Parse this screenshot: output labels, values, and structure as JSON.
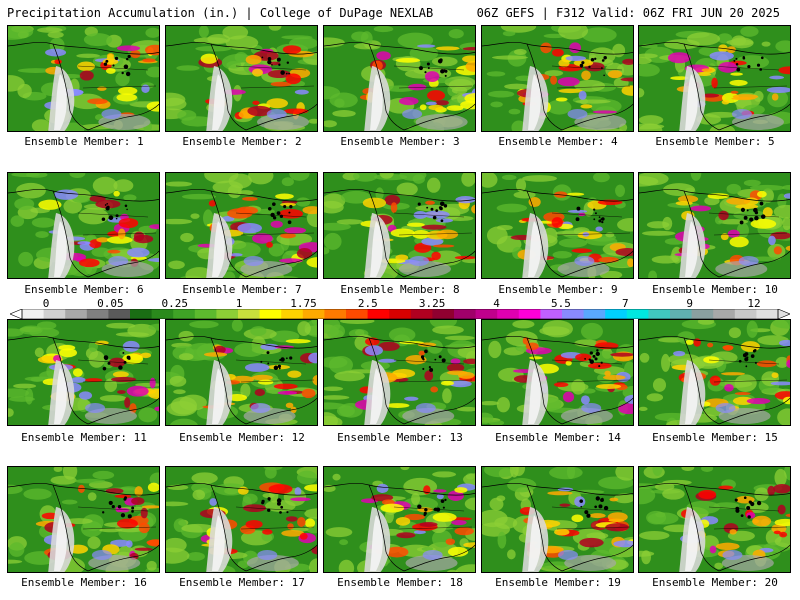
{
  "header": {
    "title": "Precipitation Accumulation (in.) | College of DuPage NEXLAB",
    "run_info": "06Z GEFS | F312 Valid: 06Z FRI JUN 20 2025"
  },
  "colorbar": {
    "labels": [
      "0",
      "0.05",
      "0.25",
      "1",
      "1.75",
      "2.5",
      "3.25",
      "4",
      "5.5",
      "7",
      "9",
      "12"
    ],
    "colors": [
      "#f0f0f0",
      "#d0d0d0",
      "#a8a8a8",
      "#808080",
      "#5a5a5a",
      "#1a6e14",
      "#2a8a1c",
      "#3fa326",
      "#5dba2e",
      "#8ccf36",
      "#c8e03c",
      "#ffff00",
      "#ffd200",
      "#ffaa00",
      "#ff7a00",
      "#ff4a00",
      "#ff0000",
      "#d80000",
      "#b00020",
      "#900030",
      "#a0006a",
      "#c0008c",
      "#e000b0",
      "#ff00d8",
      "#c060ff",
      "#8a8aff",
      "#5aa8ff",
      "#00d0ff",
      "#00e8e0",
      "#40c8c0",
      "#60b0b0",
      "#8aa0a0",
      "#a8a8a8",
      "#c8c8c8",
      "#e0e0e0"
    ]
  },
  "panels": [
    {
      "caption": "Ensemble Member: 1"
    },
    {
      "caption": "Ensemble Member: 2"
    },
    {
      "caption": "Ensemble Member: 3"
    },
    {
      "caption": "Ensemble Member: 4"
    },
    {
      "caption": "Ensemble Member: 5"
    },
    {
      "caption": "Ensemble Member: 6"
    },
    {
      "caption": "Ensemble Member: 7"
    },
    {
      "caption": "Ensemble Member: 8"
    },
    {
      "caption": "Ensemble Member: 9"
    },
    {
      "caption": "Ensemble Member: 10"
    },
    {
      "caption": "Ensemble Member: 11"
    },
    {
      "caption": "Ensemble Member: 12"
    },
    {
      "caption": "Ensemble Member: 13"
    },
    {
      "caption": "Ensemble Member: 14"
    },
    {
      "caption": "Ensemble Member: 15"
    },
    {
      "caption": "Ensemble Member: 16"
    },
    {
      "caption": "Ensemble Member: 17"
    },
    {
      "caption": "Ensemble Member: 18"
    },
    {
      "caption": "Ensemble Member: 19"
    },
    {
      "caption": "Ensemble Member: 20"
    }
  ]
}
